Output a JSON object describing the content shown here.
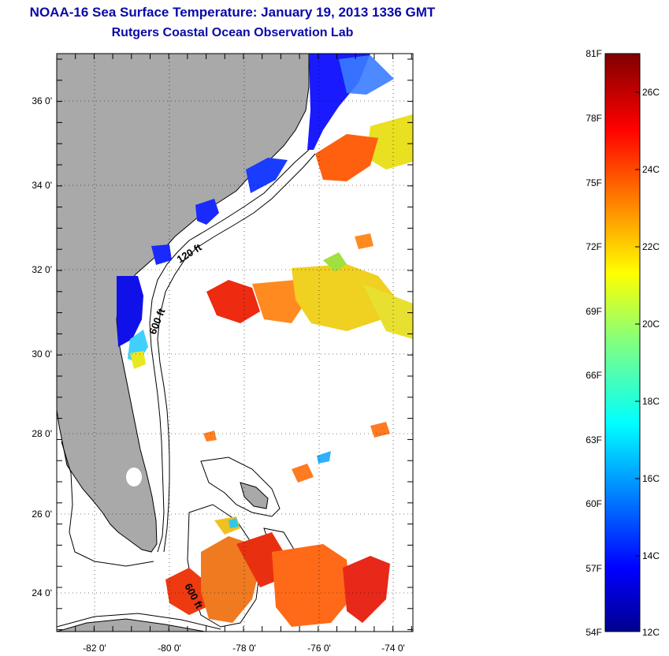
{
  "title": {
    "line1": "NOAA-16 Sea Surface Temperature:  January 19, 2013 1336 GMT",
    "line2": "Rutgers Coastal Ocean Observation Lab"
  },
  "map": {
    "lat_labels": [
      "36 0'",
      "34 0'",
      "32 0'",
      "30 0'",
      "28 0'",
      "26 0'",
      "24 0'"
    ],
    "lon_labels": [
      "-82 0'",
      "-80 0'",
      "-78 0'",
      "-76 0'",
      "-74 0'"
    ],
    "contour_labels": [
      "120 ft",
      "600 ft",
      "600 ft"
    ],
    "colors": {
      "land": "#a9a9a9",
      "coast": "#000000"
    }
  },
  "colorbar": {
    "fahrenheit_labels": [
      "81F",
      "78F",
      "75F",
      "72F",
      "69F",
      "66F",
      "63F",
      "60F",
      "57F",
      "54F"
    ],
    "celsius_labels": [
      "26C",
      "24C",
      "22C",
      "20C",
      "18C",
      "16C",
      "14C",
      "12C"
    ],
    "range_c": [
      12,
      27
    ],
    "colormap": "jet"
  }
}
